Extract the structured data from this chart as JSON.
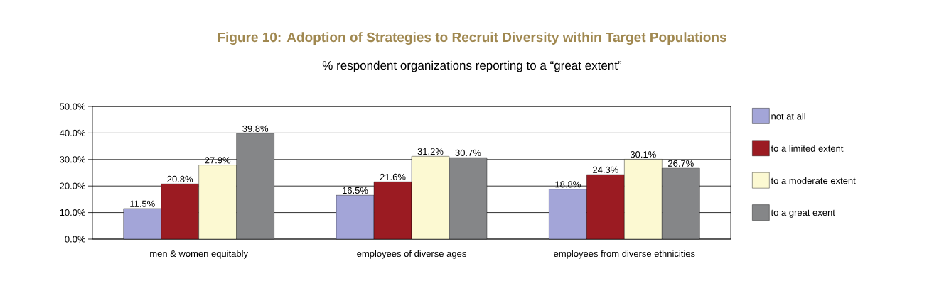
{
  "chart_data": {
    "type": "bar",
    "title": "Figure 10:  Adoption of Strategies to Recruit Diversity within Target Populations",
    "subtitle": "% respondent organizations reporting to a “great extent”",
    "categories": [
      "men & women equitably",
      "employees of diverse ages",
      "employees from diverse  ethnicities"
    ],
    "series": [
      {
        "name": "not at all",
        "color": "#a3a5d8",
        "values": [
          11.5,
          16.5,
          18.8
        ],
        "value_labels": [
          "11.5%",
          "16.5%",
          "18.8%"
        ]
      },
      {
        "name": "to a limited extent",
        "color": "#9b1b22",
        "values": [
          20.8,
          21.6,
          24.3
        ],
        "value_labels": [
          "20.8%",
          "21.6%",
          "24.3%"
        ]
      },
      {
        "name": "to a moderate extent",
        "color": "#fcf9d2",
        "values": [
          27.9,
          31.2,
          30.1
        ],
        "value_labels": [
          "27.9%",
          "31.2%",
          "30.1%"
        ]
      },
      {
        "name": "to a great exent",
        "color": "#858688",
        "values": [
          39.8,
          30.7,
          26.7
        ],
        "value_labels": [
          "39.8%",
          "30.7%",
          "26.7%"
        ]
      }
    ],
    "ylim": [
      0,
      50
    ],
    "yticks": [
      {
        "value": 0,
        "label": "0.0%"
      },
      {
        "value": 10,
        "label": "10.0%"
      },
      {
        "value": 20,
        "label": "20.0%"
      },
      {
        "value": 30,
        "label": "30.0%"
      },
      {
        "value": 40,
        "label": "40.0%"
      },
      {
        "value": 50,
        "label": "50.0%"
      }
    ],
    "grid": "y",
    "legend": "right"
  }
}
